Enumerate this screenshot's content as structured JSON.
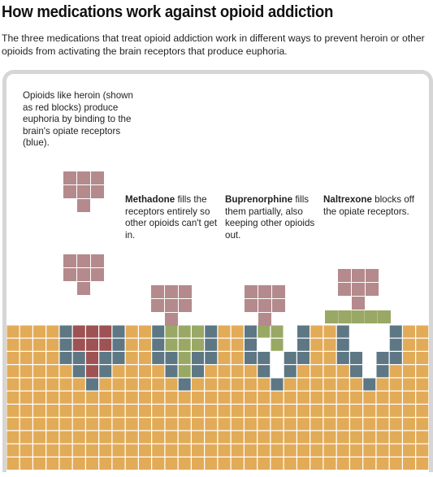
{
  "title": "How medications work against opioid addiction",
  "subtitle": "The three medications that treat opioid addiction work in different ways to prevent heroin or other opioids from activating the brain receptors that produce euphoria.",
  "intro_note": "Opioids like heroin (shown as red blocks) produce euphoria by binding to the brain's opiate receptors (blue).",
  "medications": [
    {
      "name": "Methadone",
      "description": "fills the receptors entirely so other opioids can't get in."
    },
    {
      "name": "Buprenorphine",
      "description": "fills them partially, also keeping other opioids out."
    },
    {
      "name": "Naltrexone",
      "description": "blocks off the opiate receptors."
    }
  ],
  "colors": {
    "brain_tissue": "#e2ab58",
    "receptor": "#5d7784",
    "opioid_free": "#b48a8d",
    "opioid_bound": "#9e5253",
    "medication": "#9aa865",
    "panel_border": "#d6d6d6"
  }
}
